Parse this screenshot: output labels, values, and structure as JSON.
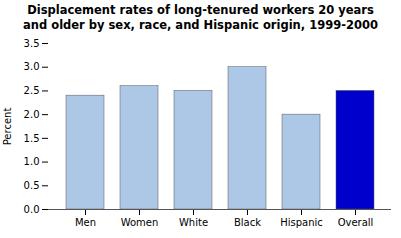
{
  "chart_data": {
    "type": "bar",
    "title": "Displacement rates of long-tenured workers 20 years\nand older by sex, race, and Hispanic origin, 1999-2000",
    "categories": [
      "Men",
      "Women",
      "White",
      "Black",
      "Hispanic",
      "Overall"
    ],
    "values": [
      2.4,
      2.6,
      2.5,
      3.0,
      2.0,
      2.5
    ],
    "colors": [
      "#adc8e6",
      "#adc8e6",
      "#adc8e6",
      "#adc8e6",
      "#adc8e6",
      "#0000cc"
    ],
    "ylabel": "Percent",
    "ylim": [
      0,
      3.5
    ],
    "yticks": [
      {
        "value": 0,
        "label": "0.0"
      },
      0.5,
      {
        "value": 1,
        "label": "1.0"
      },
      1.5,
      {
        "value": 2,
        "label": "2.0"
      },
      2.5,
      {
        "value": 3,
        "label": "3.0"
      },
      3.5
    ],
    "grid": false
  }
}
